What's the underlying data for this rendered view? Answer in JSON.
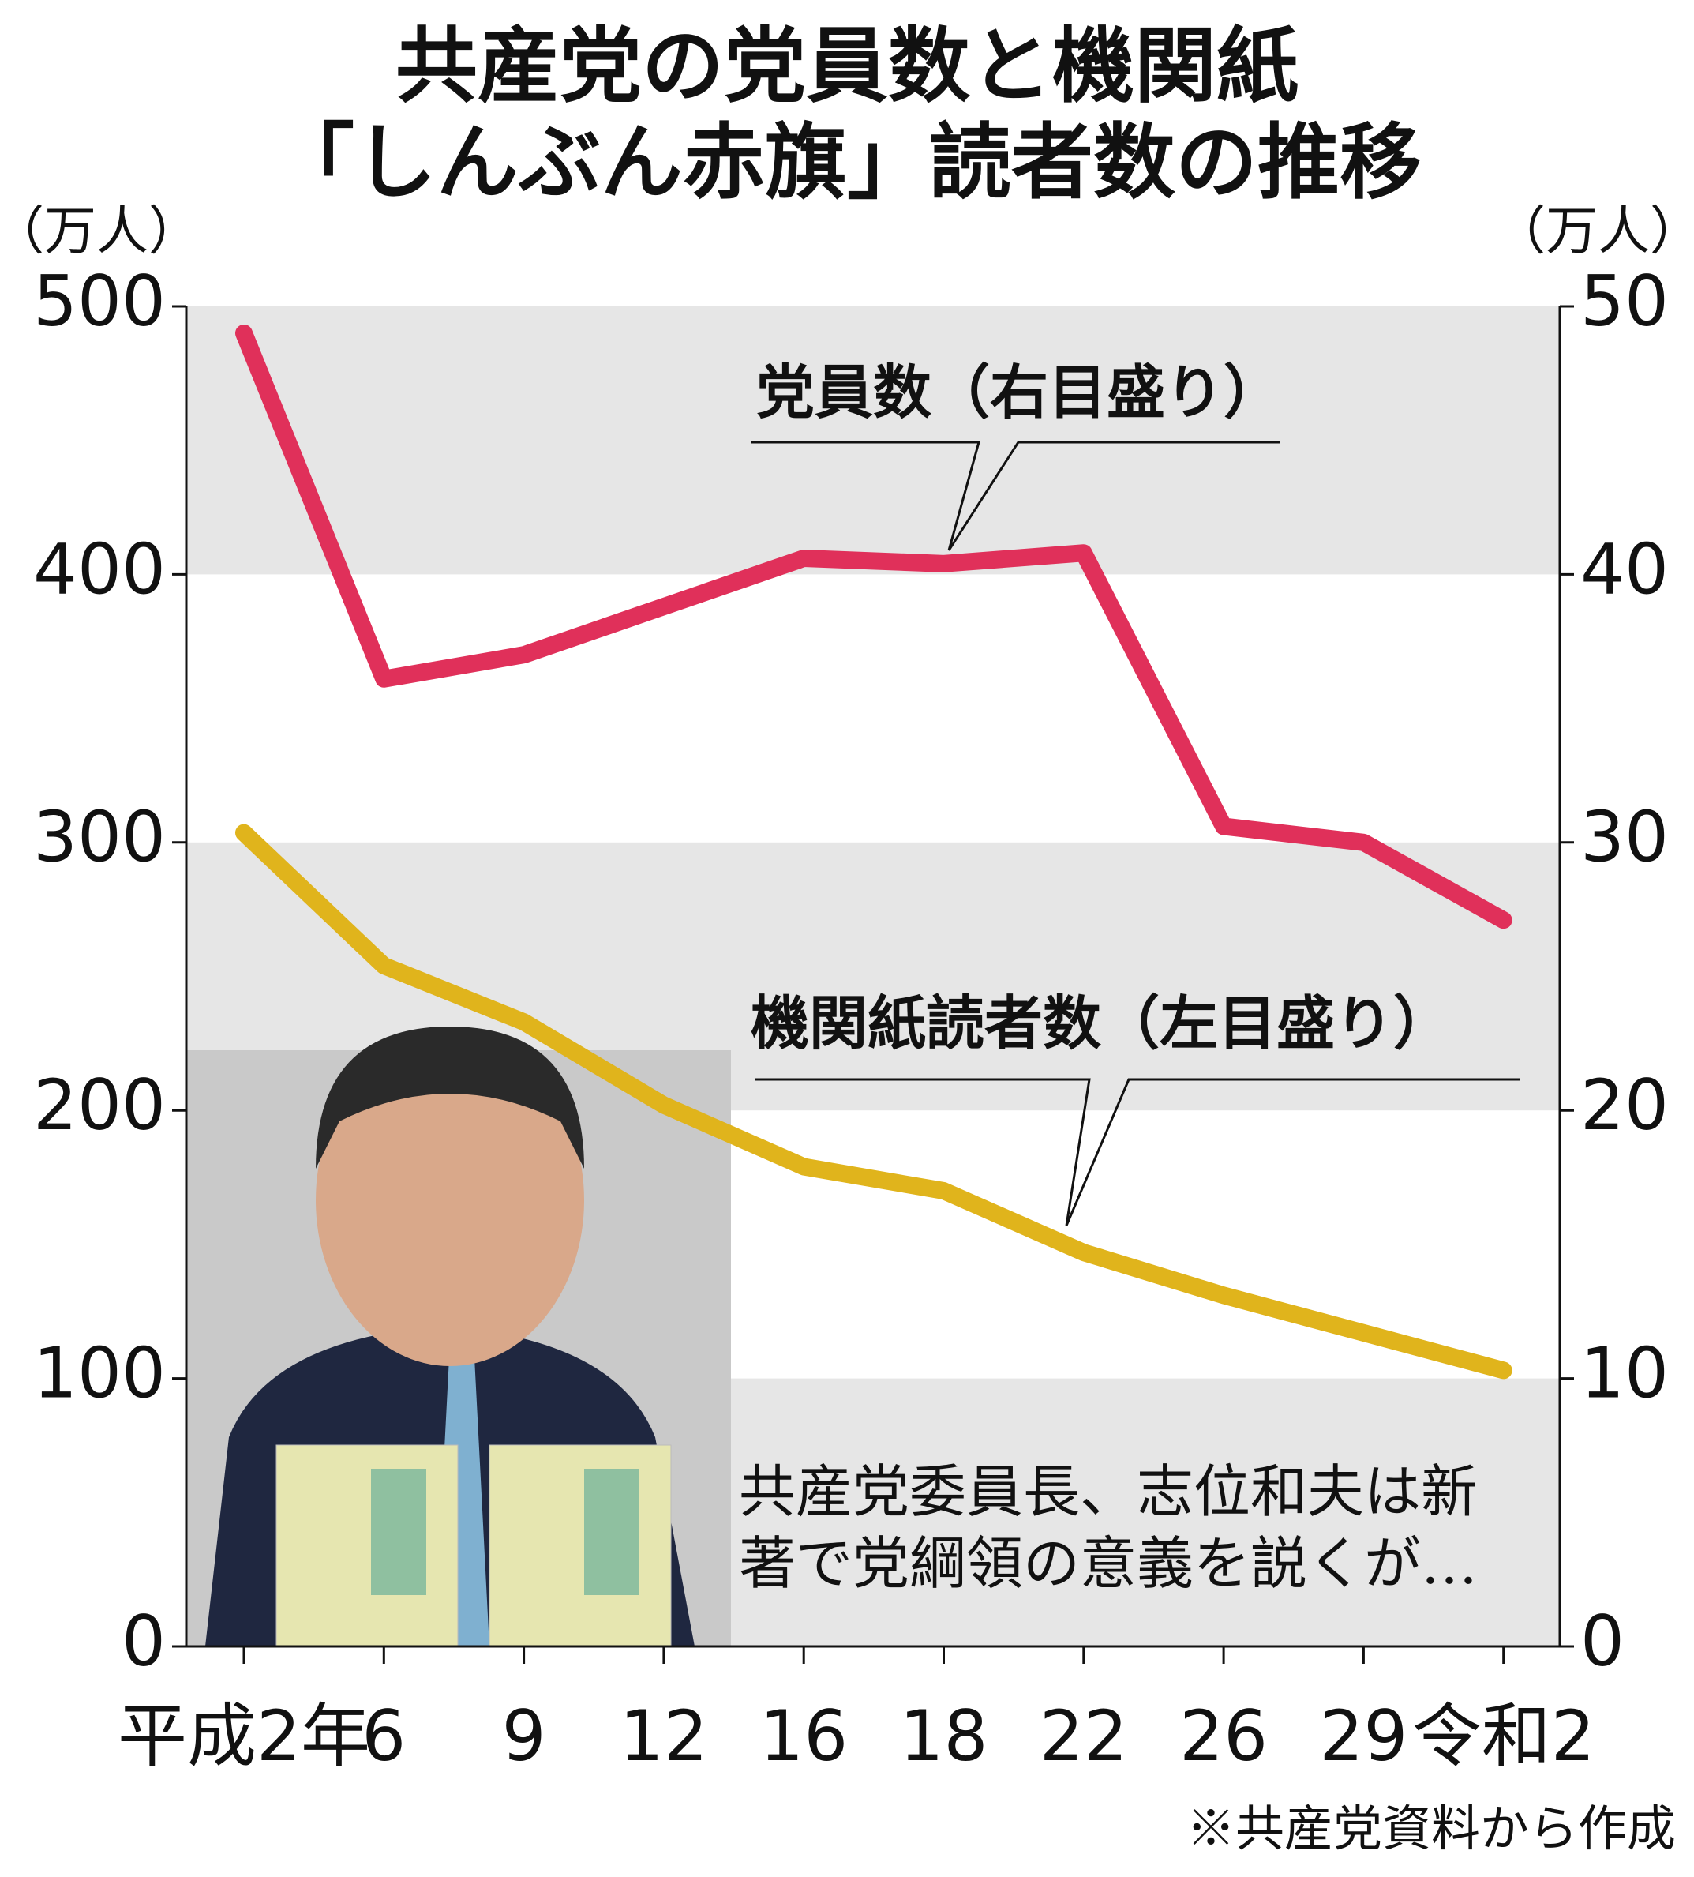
{
  "chart_data": {
    "type": "line",
    "title": [
      "共産党の党員数と機関紙",
      "「しんぶん赤旗」読者数の推移"
    ],
    "y_unit": "（万人）",
    "y2_unit": "（万人）",
    "categories": [
      "平成2年",
      "6",
      "9",
      "12",
      "16",
      "18",
      "22",
      "26",
      "29",
      "令和2"
    ],
    "series": [
      {
        "name": "党員数（右目盛り）",
        "color": "#e0305a",
        "axis": "y2",
        "values": [
          49.0,
          36.1,
          37.0,
          38.8,
          40.6,
          40.4,
          40.8,
          30.6,
          30.0,
          27.1
        ]
      },
      {
        "name": "機関紙読者数（左目盛り）",
        "color": "#e0b41c",
        "values": [
          303.6,
          254,
          233,
          202,
          179,
          170,
          147,
          131,
          117,
          103
        ]
      }
    ],
    "ylim": [
      0,
      500
    ],
    "yticks": [
      0,
      100,
      200,
      300,
      400,
      500
    ],
    "y2lim": [
      0,
      50
    ],
    "y2ticks": [
      0,
      10,
      20,
      30,
      40,
      50
    ],
    "bands": true,
    "photo_caption": [
      "共産党委員長、志位和夫は新",
      "著で党綱領の意義を説くが…"
    ],
    "source": "※共産党資料から作成"
  }
}
